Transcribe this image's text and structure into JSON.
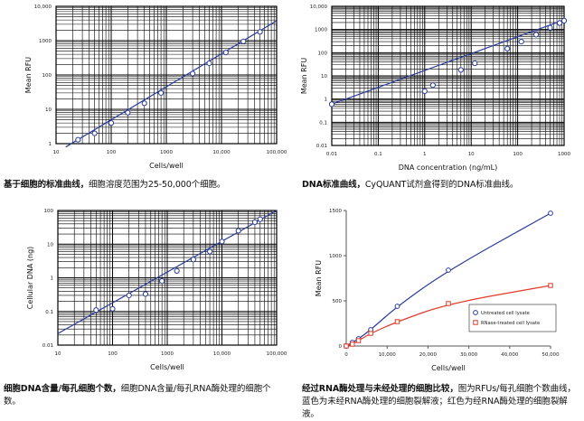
{
  "colors": {
    "line_main": "#2a3a9a",
    "line_rnase": "#e03a2a",
    "marker": "#2a3a9a",
    "grid": "#000000"
  },
  "captions": [
    {
      "bold": "基于细胞的标准曲线，",
      "rest": "细胞溶度范围为25-50,000个细胞。"
    },
    {
      "bold": "DNA标准曲线，",
      "rest": "CyQUANT试剂盒得到的DNA标准曲线。"
    },
    {
      "bold": "细胞DNA含量/每孔细胞个数，",
      "rest": "细胞DNA含量/每孔RNA酶处理的细胞个数。"
    },
    {
      "bold": "经过RNA酶处理与未经处理的细胞比较，",
      "rest": "图为RFUs/每孔细胞个数曲线，蓝色为未经RNA酶处理的细胞裂解液；红色为经RNA酶处理的细胞裂解液。"
    }
  ],
  "chart_data": [
    {
      "type": "scatter",
      "xscale": "log",
      "yscale": "log",
      "xlabel": "Cells/well",
      "ylabel": "Mean RFU",
      "xlim": [
        10,
        100000
      ],
      "ylim": [
        1,
        10000
      ],
      "xticks": [
        "10",
        "100",
        "1000",
        "10,000",
        "100,000"
      ],
      "yticks": [
        "1",
        "10",
        "100",
        "1000",
        "10,000"
      ],
      "grid": true,
      "points": [
        {
          "x": 25,
          "y": 1.3
        },
        {
          "x": 50,
          "y": 2
        },
        {
          "x": 100,
          "y": 4
        },
        {
          "x": 200,
          "y": 8
        },
        {
          "x": 400,
          "y": 15
        },
        {
          "x": 800,
          "y": 30
        },
        {
          "x": 3000,
          "y": 110
        },
        {
          "x": 6000,
          "y": 220
        },
        {
          "x": 12000,
          "y": 450
        },
        {
          "x": 25000,
          "y": 950
        },
        {
          "x": 50000,
          "y": 1800
        }
      ],
      "fit": [
        {
          "x": 15,
          "y": 0.8
        },
        {
          "x": 100000,
          "y": 3800
        }
      ]
    },
    {
      "type": "scatter",
      "xscale": "log",
      "yscale": "log",
      "xlabel": "DNA concentration (ng/mL)",
      "ylabel": "Mean RFU",
      "xlim": [
        0.01,
        1000
      ],
      "ylim": [
        0.01,
        10000
      ],
      "xticks": [
        "0.01",
        "0.1",
        "1",
        "10",
        "100",
        "1000"
      ],
      "yticks": [
        "0.01",
        "0.1",
        "1",
        "10",
        "100",
        "1000",
        "10,000"
      ],
      "grid": true,
      "points": [
        {
          "x": 0.01,
          "y": 0.6
        },
        {
          "x": 1,
          "y": 2.2
        },
        {
          "x": 1.5,
          "y": 4
        },
        {
          "x": 6,
          "y": 18
        },
        {
          "x": 12,
          "y": 35
        },
        {
          "x": 60,
          "y": 150
        },
        {
          "x": 120,
          "y": 300
        },
        {
          "x": 250,
          "y": 600
        },
        {
          "x": 500,
          "y": 1200
        },
        {
          "x": 800,
          "y": 1900
        },
        {
          "x": 1000,
          "y": 2400
        }
      ],
      "fit": [
        {
          "x": 0.01,
          "y": 0.6
        },
        {
          "x": 1000,
          "y": 2600
        }
      ]
    },
    {
      "type": "scatter",
      "xscale": "log",
      "yscale": "log",
      "xlabel": "Cells/well",
      "ylabel": "Cellular DNA (ng)",
      "xlim": [
        10,
        100000
      ],
      "ylim": [
        0.01,
        100
      ],
      "xticks": [
        "10",
        "100",
        "1000",
        "10,000",
        "100,000"
      ],
      "yticks": [
        "0.01",
        "0.1",
        "1",
        "10",
        "100"
      ],
      "grid": true,
      "points": [
        {
          "x": 50,
          "y": 0.11
        },
        {
          "x": 100,
          "y": 0.12
        },
        {
          "x": 200,
          "y": 0.3
        },
        {
          "x": 400,
          "y": 0.33
        },
        {
          "x": 800,
          "y": 0.8
        },
        {
          "x": 1500,
          "y": 1.6
        },
        {
          "x": 3000,
          "y": 3.5
        },
        {
          "x": 6000,
          "y": 6
        },
        {
          "x": 10000,
          "y": 12
        },
        {
          "x": 20000,
          "y": 25
        },
        {
          "x": 40000,
          "y": 45
        },
        {
          "x": 50000,
          "y": 55
        }
      ],
      "fit": [
        {
          "x": 10,
          "y": 0.022
        },
        {
          "x": 100000,
          "y": 100
        }
      ]
    },
    {
      "type": "line",
      "xscale": "linear",
      "yscale": "linear",
      "xlabel": "Cells/well",
      "ylabel": "Mean RFU",
      "xlim": [
        0,
        50000
      ],
      "ylim": [
        0,
        1500
      ],
      "xticks": [
        "0",
        "10,000",
        "20,000",
        "30,000",
        "40,000",
        "50,000"
      ],
      "yticks": [
        "0",
        "500",
        "1000",
        "1500"
      ],
      "grid": false,
      "legend_position": "bottom-right",
      "series": [
        {
          "name": "Untreated cell lysate",
          "marker": "circle",
          "points": [
            {
              "x": 0,
              "y": 0
            },
            {
              "x": 1500,
              "y": 40
            },
            {
              "x": 3000,
              "y": 80
            },
            {
              "x": 6000,
              "y": 180
            },
            {
              "x": 12500,
              "y": 440
            },
            {
              "x": 25000,
              "y": 840
            },
            {
              "x": 50000,
              "y": 1470
            }
          ]
        },
        {
          "name": "RNase-treated cell lysate",
          "marker": "square",
          "points": [
            {
              "x": 0,
              "y": 0
            },
            {
              "x": 1500,
              "y": 20
            },
            {
              "x": 3000,
              "y": 60
            },
            {
              "x": 6000,
              "y": 140
            },
            {
              "x": 12500,
              "y": 270
            },
            {
              "x": 25000,
              "y": 470
            },
            {
              "x": 50000,
              "y": 670
            }
          ]
        }
      ]
    }
  ]
}
